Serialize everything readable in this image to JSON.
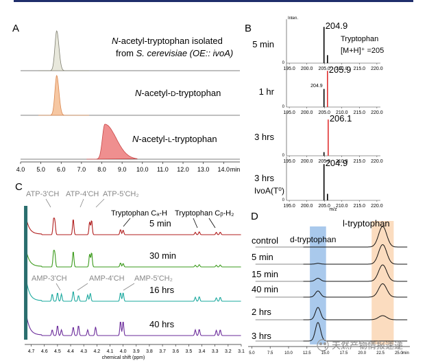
{
  "panel_labels": {
    "A": "A",
    "B": "B",
    "C": "C",
    "D": "D"
  },
  "chart_data": [
    {
      "panel": "A",
      "type": "line",
      "subtype": "stacked chromatograms",
      "xlabel": "min",
      "xlim": [
        4.0,
        14.8
      ],
      "xticks": [
        "4.0",
        "5.0",
        "6.0",
        "7.0",
        "8.0",
        "9.0",
        "10.0",
        "11.0",
        "12.0",
        "13.0",
        "14.0"
      ],
      "series": [
        {
          "name_parts": [
            {
              "text": "N",
              "italic": true
            },
            {
              "text": "-acetyl-tryptophan isolated",
              "italic": false
            }
          ],
          "name_line2": [
            {
              "text": "from ",
              "italic": false
            },
            {
              "text": "S. cerevisiae (OE:: ivoA)",
              "italic": true
            }
          ],
          "peak_rt": 5.78,
          "peak_height": 1.0,
          "fill": "#e8e8dc",
          "stroke": "#7c7c6e"
        },
        {
          "name_parts": [
            {
              "text": "N",
              "italic": true
            },
            {
              "text": "-acetyl-",
              "italic": false
            },
            {
              "text": "d",
              "italic": false,
              "smallcaps": true
            },
            {
              "text": "-tryptophan",
              "italic": false
            }
          ],
          "peak_rt": 5.78,
          "peak_height": 1.0,
          "fill": "#f6c7a2",
          "stroke": "#d9864f"
        },
        {
          "name_parts": [
            {
              "text": "N",
              "italic": true
            },
            {
              "text": "-acetyl-",
              "italic": false
            },
            {
              "text": "l",
              "italic": false,
              "smallcaps": true
            },
            {
              "text": "-tryptophan",
              "italic": false
            }
          ],
          "peak_rt": 8.15,
          "peak_height": 0.88,
          "fill": "#ef8f8f",
          "stroke": "#c94545"
        }
      ]
    },
    {
      "panel": "B",
      "type": "bar",
      "subtype": "mass spectra",
      "xlabel": "m/z",
      "ylabel": "Inten.",
      "xlim": [
        194.2,
        221.0
      ],
      "xticks": [
        "195.0",
        "200.0",
        "205.0",
        "210.0",
        "215.0",
        "220.0"
      ],
      "y_zero_label": "0",
      "spectra": [
        {
          "label": "5 min",
          "sticks": [
            {
              "mz": 204.9,
              "h": 1.0,
              "color": "#000000"
            },
            {
              "mz": 205.9,
              "h": 0.22,
              "color": "#000000"
            }
          ],
          "peak_label": "204.9",
          "annotation_line1": "Tryptophan",
          "annotation_line2": "[M+H]⁺ =205"
        },
        {
          "label": "1 hr",
          "sticks": [
            {
              "mz": 204.9,
              "h": 0.5,
              "color": "#000000"
            },
            {
              "mz": 205.9,
              "h": 1.0,
              "color": "#e03030"
            }
          ],
          "peak_label": "205.9",
          "minor_label": "204.9"
        },
        {
          "label": "3 hrs",
          "sticks": [
            {
              "mz": 206.1,
              "h": 1.0,
              "color": "#e03030"
            },
            {
              "mz": 204.9,
              "h": 0.1,
              "color": "#000000"
            }
          ],
          "peak_label": "206.1"
        },
        {
          "label": "3 hrs",
          "label2": "IvoA(T⁰)",
          "sticks": [
            {
              "mz": 204.9,
              "h": 1.0,
              "color": "#000000"
            },
            {
              "mz": 205.9,
              "h": 0.18,
              "color": "#000000"
            }
          ],
          "peak_label": "204.9"
        }
      ]
    },
    {
      "panel": "C",
      "type": "line",
      "subtype": "stacked 1H NMR spectra",
      "xlabel": "chemical shift (ppm)",
      "xlim": [
        4.75,
        3.1
      ],
      "xticks": [
        "4.7",
        "4.6",
        "4.5",
        "4.4",
        "4.3",
        "4.2",
        "4.1",
        "4.0",
        "3.9",
        "3.8",
        "3.7",
        "3.6",
        "3.5",
        "3.4",
        "3.3",
        "3.2",
        "3.1"
      ],
      "series": [
        {
          "name": "5 min",
          "color": "#b01c1c"
        },
        {
          "name": "30 min",
          "color": "#3a9a1a"
        },
        {
          "name": "16 hrs",
          "color": "#1aa89e"
        },
        {
          "name": "40 hrs",
          "color": "#6a2a9a"
        }
      ],
      "annotations_top": [
        "ATP-3'CH",
        "ATP-4'CH",
        "ATP-5'CH₂"
      ],
      "annotations_mid": [
        "AMP-3'CH",
        "AMP-4'CH",
        "AMP-5'CH₂"
      ],
      "annotation_alpha": "Tryptophan Cₐ-H",
      "annotation_beta": "Tryptophan Cᵦ-H₂"
    },
    {
      "panel": "D",
      "type": "line",
      "subtype": "stacked chromatograms",
      "xlabel": "min",
      "xlim": [
        4.5,
        26.5
      ],
      "xticks": [
        "5.0",
        "7.5",
        "10.0",
        "12.5",
        "15.0",
        "17.5",
        "20.0",
        "22.5",
        "25.0"
      ],
      "highlight_d": {
        "from": 12.9,
        "to": 15.1,
        "color": "#a9c9ec",
        "label": "d-tryptophan"
      },
      "highlight_l": {
        "from": 21.3,
        "to": 24.3,
        "color": "#fbdcbf",
        "label": "l-tryptophan"
      },
      "series": [
        {
          "name": "control",
          "d_height": 0.0,
          "l_height": 1.0
        },
        {
          "name": "5 min",
          "d_height": 0.04,
          "l_height": 0.95
        },
        {
          "name": "15 min",
          "d_height": 0.15,
          "l_height": 0.8
        },
        {
          "name": "40 min",
          "d_height": 0.3,
          "l_height": 0.65
        },
        {
          "name": "2 hrs",
          "d_height": 0.6,
          "l_height": 0.2
        },
        {
          "name": "3 hrs",
          "d_height": 0.9,
          "l_height": 0.0
        }
      ]
    }
  ],
  "watermark": "天然产物情报速递"
}
